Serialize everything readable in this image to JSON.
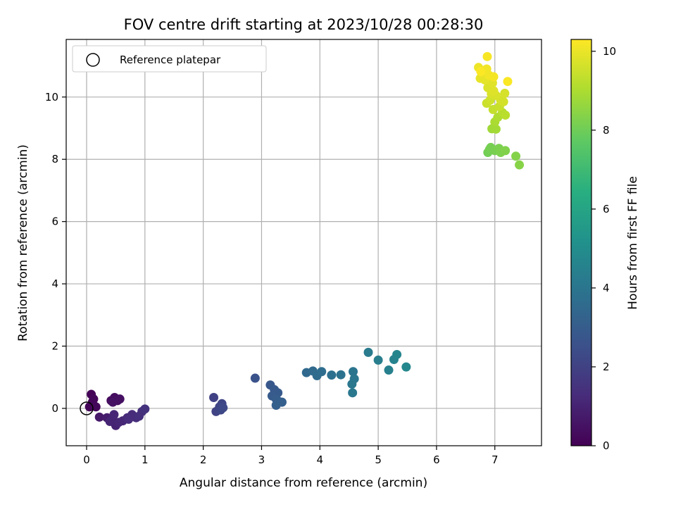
{
  "chart_data": {
    "type": "scatter",
    "title": "FOV centre drift starting at 2023/10/28 00:28:30",
    "xlabel": "Angular distance from reference (arcmin)",
    "ylabel": "Rotation from reference (arcmin)",
    "xlim": [
      -0.35,
      7.8
    ],
    "ylim": [
      -1.2,
      11.85
    ],
    "xticks": [
      0,
      1,
      2,
      3,
      4,
      5,
      6,
      7
    ],
    "yticks": [
      0,
      2,
      4,
      6,
      8,
      10
    ],
    "grid": true,
    "legend": {
      "placement": "top-left",
      "entries": [
        "Reference platepar"
      ]
    },
    "reference_point": {
      "x": 0,
      "y": 0,
      "label": "Reference platepar"
    },
    "colorbar": {
      "label": "Hours from first FF file",
      "range": [
        0,
        10.3
      ],
      "ticks": [
        0,
        2,
        4,
        6,
        8,
        10
      ],
      "colormap": "viridis"
    },
    "points": [
      {
        "x": 0.08,
        "y": 0.45,
        "h": 0.05
      },
      {
        "x": 0.1,
        "y": 0.2,
        "h": 0.1
      },
      {
        "x": 0.05,
        "y": 0.05,
        "h": 0.12
      },
      {
        "x": 0.12,
        "y": 0.3,
        "h": 0.15
      },
      {
        "x": 0.16,
        "y": 0.05,
        "h": 0.2
      },
      {
        "x": 0.42,
        "y": 0.25,
        "h": 0.3
      },
      {
        "x": 0.48,
        "y": 0.35,
        "h": 0.35
      },
      {
        "x": 0.53,
        "y": 0.25,
        "h": 0.4
      },
      {
        "x": 0.57,
        "y": 0.3,
        "h": 0.45
      },
      {
        "x": 0.45,
        "y": 0.2,
        "h": 0.5
      },
      {
        "x": 0.22,
        "y": -0.28,
        "h": 0.7
      },
      {
        "x": 0.35,
        "y": -0.3,
        "h": 0.8
      },
      {
        "x": 0.45,
        "y": -0.35,
        "h": 0.9
      },
      {
        "x": 0.5,
        "y": -0.55,
        "h": 1.0
      },
      {
        "x": 0.4,
        "y": -0.42,
        "h": 1.05
      },
      {
        "x": 0.55,
        "y": -0.45,
        "h": 1.1
      },
      {
        "x": 0.62,
        "y": -0.4,
        "h": 1.15
      },
      {
        "x": 0.7,
        "y": -0.3,
        "h": 1.2
      },
      {
        "x": 0.78,
        "y": -0.2,
        "h": 1.25
      },
      {
        "x": 0.85,
        "y": -0.3,
        "h": 1.3
      },
      {
        "x": 0.9,
        "y": -0.25,
        "h": 1.35
      },
      {
        "x": 0.95,
        "y": -0.1,
        "h": 1.4
      },
      {
        "x": 1.0,
        "y": -0.02,
        "h": 1.45
      },
      {
        "x": 0.47,
        "y": -0.2,
        "h": 1.1
      },
      {
        "x": 0.72,
        "y": -0.35,
        "h": 1.3
      },
      {
        "x": 2.18,
        "y": 0.35,
        "h": 2.0
      },
      {
        "x": 2.22,
        "y": -0.1,
        "h": 2.05
      },
      {
        "x": 2.28,
        "y": 0.05,
        "h": 2.1
      },
      {
        "x": 2.32,
        "y": 0.15,
        "h": 2.15
      },
      {
        "x": 2.3,
        "y": -0.05,
        "h": 2.2
      },
      {
        "x": 2.34,
        "y": 0.02,
        "h": 2.25
      },
      {
        "x": 2.89,
        "y": 0.97,
        "h": 2.6
      },
      {
        "x": 3.15,
        "y": 0.75,
        "h": 2.8
      },
      {
        "x": 3.22,
        "y": 0.6,
        "h": 2.85
      },
      {
        "x": 3.28,
        "y": 0.5,
        "h": 2.9
      },
      {
        "x": 3.18,
        "y": 0.4,
        "h": 2.95
      },
      {
        "x": 3.25,
        "y": 0.3,
        "h": 3.0
      },
      {
        "x": 3.3,
        "y": 0.22,
        "h": 3.05
      },
      {
        "x": 3.35,
        "y": 0.2,
        "h": 3.1
      },
      {
        "x": 3.25,
        "y": 0.1,
        "h": 3.15
      },
      {
        "x": 3.77,
        "y": 1.15,
        "h": 3.5
      },
      {
        "x": 3.88,
        "y": 1.2,
        "h": 3.55
      },
      {
        "x": 3.95,
        "y": 1.05,
        "h": 3.6
      },
      {
        "x": 4.03,
        "y": 1.18,
        "h": 3.65
      },
      {
        "x": 4.2,
        "y": 1.07,
        "h": 3.75
      },
      {
        "x": 4.36,
        "y": 1.08,
        "h": 3.85
      },
      {
        "x": 4.57,
        "y": 1.18,
        "h": 3.95
      },
      {
        "x": 4.59,
        "y": 0.95,
        "h": 4.0
      },
      {
        "x": 4.55,
        "y": 0.78,
        "h": 4.05
      },
      {
        "x": 4.56,
        "y": 0.5,
        "h": 4.1
      },
      {
        "x": 4.83,
        "y": 1.8,
        "h": 4.25
      },
      {
        "x": 5.0,
        "y": 1.55,
        "h": 4.35
      },
      {
        "x": 5.18,
        "y": 1.23,
        "h": 4.45
      },
      {
        "x": 5.27,
        "y": 1.57,
        "h": 4.55
      },
      {
        "x": 5.32,
        "y": 1.73,
        "h": 4.65
      },
      {
        "x": 5.48,
        "y": 1.33,
        "h": 4.75
      },
      {
        "x": 6.88,
        "y": 8.22,
        "h": 8.05
      },
      {
        "x": 6.91,
        "y": 8.32,
        "h": 8.1
      },
      {
        "x": 6.93,
        "y": 8.38,
        "h": 8.12
      },
      {
        "x": 7.0,
        "y": 8.28,
        "h": 8.15
      },
      {
        "x": 7.07,
        "y": 8.35,
        "h": 8.2
      },
      {
        "x": 7.1,
        "y": 8.22,
        "h": 8.25
      },
      {
        "x": 7.18,
        "y": 8.28,
        "h": 8.3
      },
      {
        "x": 7.36,
        "y": 8.1,
        "h": 8.35
      },
      {
        "x": 7.42,
        "y": 7.82,
        "h": 8.4
      },
      {
        "x": 6.95,
        "y": 8.98,
        "h": 8.8
      },
      {
        "x": 7.02,
        "y": 8.97,
        "h": 8.85
      },
      {
        "x": 7.0,
        "y": 9.2,
        "h": 8.95
      },
      {
        "x": 7.05,
        "y": 9.35,
        "h": 9.05
      },
      {
        "x": 7.13,
        "y": 9.5,
        "h": 9.15
      },
      {
        "x": 7.18,
        "y": 9.42,
        "h": 9.2
      },
      {
        "x": 6.97,
        "y": 9.6,
        "h": 9.4
      },
      {
        "x": 7.08,
        "y": 9.7,
        "h": 9.45
      },
      {
        "x": 6.86,
        "y": 9.8,
        "h": 9.5
      },
      {
        "x": 6.92,
        "y": 9.9,
        "h": 9.55
      },
      {
        "x": 7.1,
        "y": 9.9,
        "h": 9.6
      },
      {
        "x": 7.15,
        "y": 9.85,
        "h": 9.62
      },
      {
        "x": 7.17,
        "y": 10.12,
        "h": 9.65
      },
      {
        "x": 7.02,
        "y": 10.05,
        "h": 9.7
      },
      {
        "x": 6.94,
        "y": 10.1,
        "h": 9.72
      },
      {
        "x": 6.88,
        "y": 10.3,
        "h": 9.75
      },
      {
        "x": 6.96,
        "y": 10.45,
        "h": 9.85
      },
      {
        "x": 6.98,
        "y": 10.2,
        "h": 9.8
      },
      {
        "x": 6.83,
        "y": 10.55,
        "h": 9.9
      },
      {
        "x": 6.75,
        "y": 10.6,
        "h": 9.95
      },
      {
        "x": 6.8,
        "y": 10.75,
        "h": 10.0
      },
      {
        "x": 6.72,
        "y": 10.95,
        "h": 10.05
      },
      {
        "x": 6.86,
        "y": 10.9,
        "h": 10.1
      },
      {
        "x": 6.9,
        "y": 10.7,
        "h": 10.12
      },
      {
        "x": 6.98,
        "y": 10.65,
        "h": 10.15
      },
      {
        "x": 6.87,
        "y": 11.3,
        "h": 10.2
      },
      {
        "x": 7.22,
        "y": 10.5,
        "h": 10.25
      },
      {
        "x": 6.76,
        "y": 10.82,
        "h": 10.28
      }
    ]
  }
}
